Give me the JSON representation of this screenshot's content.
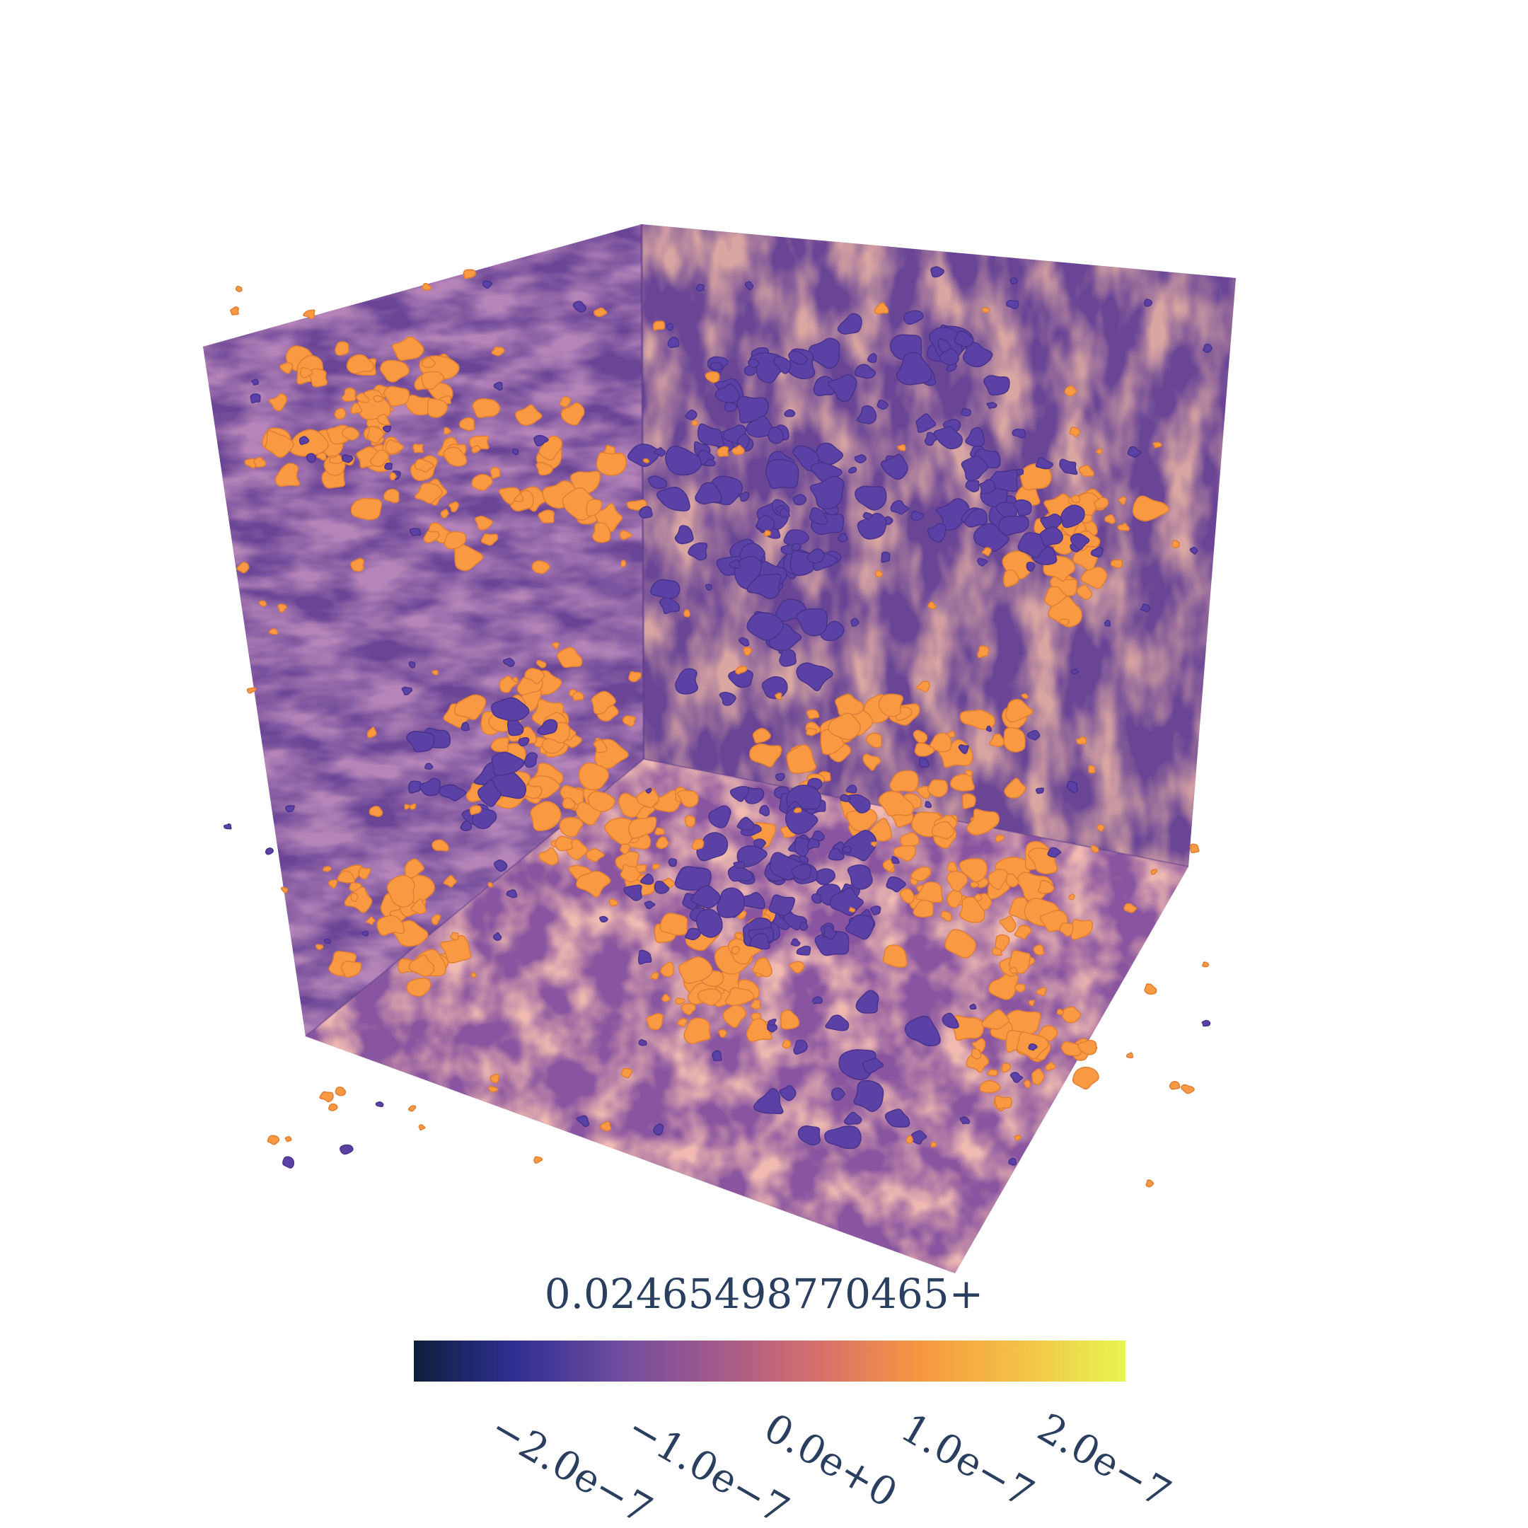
{
  "chart_data": {
    "type": "volume_isosurface_3d",
    "colorscale": "plasma",
    "colorbar": {
      "title": "0.02465498770465+",
      "range": [
        -2.6e-07,
        2.6e-07
      ],
      "tick_values": [
        -2e-07,
        -1e-07,
        0.0,
        1e-07,
        2e-07
      ],
      "tick_labels": [
        "−2.0e−7",
        "−1.0e−7",
        "0.0e+0",
        "1.0e−7",
        "2.0e−7"
      ],
      "colors": [
        "#0d1f3c",
        "#2f2f94",
        "#6e4c9e",
        "#a35a8c",
        "#d8706a",
        "#f7983f",
        "#f3c346",
        "#e8f552"
      ]
    },
    "isosurfaces": {
      "positive_color": "#f99a43",
      "negative_color": "#5b41a6"
    },
    "slice_colors": {
      "low": "#5a3f96",
      "mid": "#a35a8c",
      "high": "#f08a52"
    }
  }
}
